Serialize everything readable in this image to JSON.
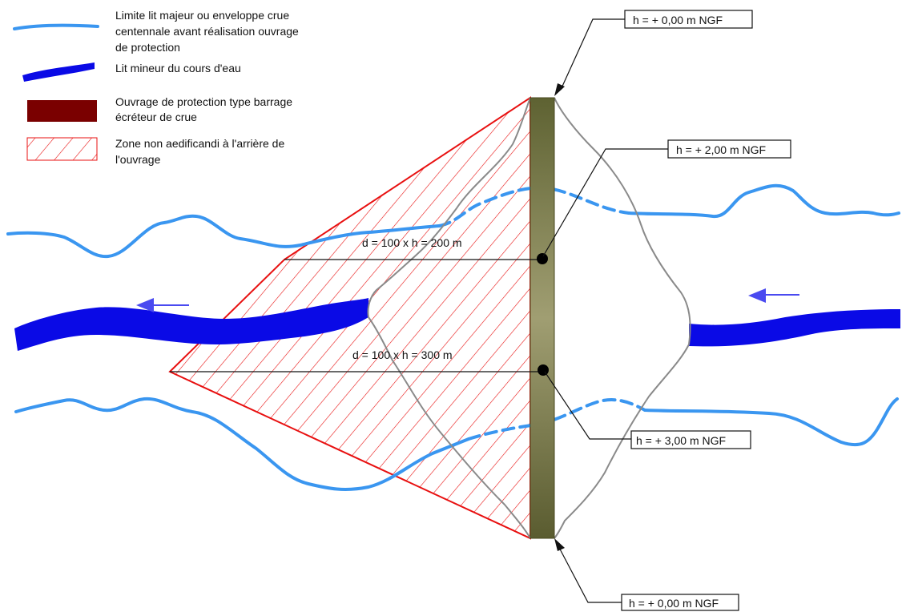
{
  "legend": {
    "item1_line1": "Limite lit majeur ou enveloppe crue",
    "item1_line2": "centennale avant réalisation ouvrage",
    "item1_line3": "de protection",
    "item2": "Lit mineur du cours d'eau",
    "item3_line1": "Ouvrage de protection type barrage",
    "item3_line2": "écréteur de crue",
    "item4_line1": "Zone non aedificandi à l'arrière de",
    "item4_line2": "l'ouvrage"
  },
  "labels": {
    "d200": "d = 100 x h = 200 m",
    "d300": "d = 100 x h = 300 m"
  },
  "boxes": {
    "top": "h = + 0,00 m NGF",
    "upper_mid": "h = + 2,00 m NGF",
    "lower_mid": "h = + 3,00 m NGF",
    "bottom": "h = + 0,00 m NGF"
  },
  "colors": {
    "flood_limit": "#3a96f0",
    "riverbed": "#0a0ae6",
    "dam": "#7a0000",
    "zone_hatch": "#e81010",
    "arrow": "#4a4af0"
  }
}
